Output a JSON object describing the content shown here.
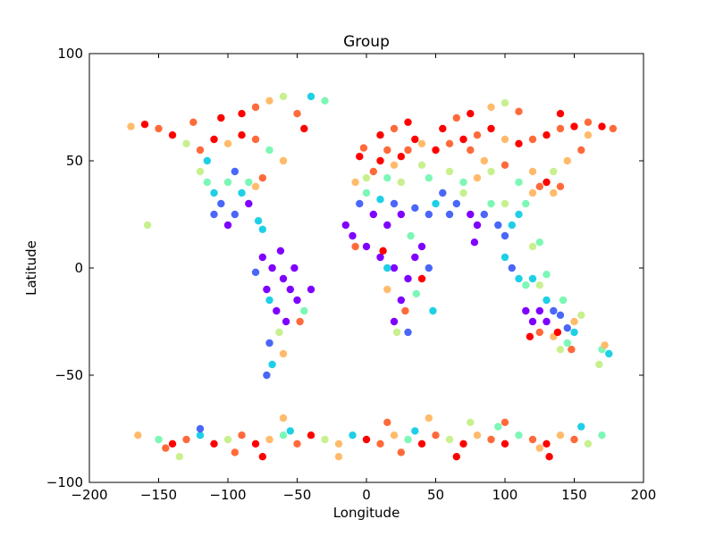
{
  "chart_data": {
    "type": "scatter",
    "title": "Group",
    "xlabel": "Longitude",
    "ylabel": "Latitude",
    "xlim": [
      -200,
      200
    ],
    "ylim": [
      -100,
      100
    ],
    "xticks": [
      -200,
      -150,
      -100,
      -50,
      0,
      50,
      100,
      150,
      200
    ],
    "yticks": [
      -100,
      -50,
      0,
      50,
      100
    ],
    "xtick_labels": [
      "−200",
      "−150",
      "−100",
      "−50",
      "0",
      "50",
      "100",
      "150",
      "200"
    ],
    "ytick_labels": [
      "−100",
      "−50",
      "0",
      "50",
      "100"
    ],
    "grid": false,
    "legend": "none",
    "colormap": [
      "#7f00ff",
      "#4a67f9",
      "#1ed0e6",
      "#7cf7b6",
      "#c8f08f",
      "#ffbb6b",
      "#ff6a3a",
      "#ff0000"
    ],
    "points": [
      [
        -75,
        5,
        0
      ],
      [
        -68,
        0,
        0
      ],
      [
        -60,
        -5,
        0
      ],
      [
        -55,
        -10,
        0
      ],
      [
        -50,
        -15,
        0
      ],
      [
        -65,
        -20,
        0
      ],
      [
        -58,
        -25,
        0
      ],
      [
        -70,
        -35,
        1
      ],
      [
        -68,
        -45,
        2
      ],
      [
        -72,
        -50,
        1
      ],
      [
        -45,
        -20,
        3
      ],
      [
        -40,
        -10,
        0
      ],
      [
        -62,
        8,
        0
      ],
      [
        -80,
        -2,
        1
      ],
      [
        -72,
        -10,
        0
      ],
      [
        -52,
        0,
        0
      ],
      [
        -63,
        -30,
        4
      ],
      [
        -60,
        -40,
        5
      ],
      [
        -70,
        -15,
        2
      ],
      [
        -48,
        -25,
        6
      ],
      [
        -100,
        20,
        0
      ],
      [
        -95,
        25,
        1
      ],
      [
        -105,
        30,
        1
      ],
      [
        -110,
        35,
        2
      ],
      [
        -115,
        40,
        3
      ],
      [
        -120,
        45,
        4
      ],
      [
        -90,
        35,
        2
      ],
      [
        -85,
        40,
        3
      ],
      [
        -80,
        38,
        5
      ],
      [
        -75,
        42,
        6
      ],
      [
        -120,
        55,
        6
      ],
      [
        -110,
        60,
        7
      ],
      [
        -100,
        58,
        5
      ],
      [
        -90,
        62,
        7
      ],
      [
        -80,
        60,
        6
      ],
      [
        -140,
        62,
        7
      ],
      [
        -150,
        65,
        6
      ],
      [
        -160,
        67,
        7
      ],
      [
        -170,
        66,
        5
      ],
      [
        -130,
        58,
        4
      ],
      [
        -70,
        55,
        3
      ],
      [
        -60,
        50,
        5
      ],
      [
        -95,
        45,
        1
      ],
      [
        -115,
        50,
        2
      ],
      [
        -85,
        30,
        0
      ],
      [
        -110,
        25,
        1
      ],
      [
        -100,
        40,
        3
      ],
      [
        -125,
        68,
        6
      ],
      [
        -105,
        70,
        7
      ],
      [
        -90,
        72,
        7
      ],
      [
        -80,
        75,
        6
      ],
      [
        -70,
        78,
        5
      ],
      [
        -60,
        80,
        4
      ],
      [
        -50,
        72,
        6
      ],
      [
        -45,
        65,
        7
      ],
      [
        -40,
        80,
        2
      ],
      [
        -30,
        78,
        3
      ],
      [
        -158,
        20,
        4
      ],
      [
        -78,
        22,
        2
      ],
      [
        -75,
        18,
        2
      ],
      [
        -10,
        15,
        0
      ],
      [
        0,
        10,
        0
      ],
      [
        10,
        5,
        0
      ],
      [
        20,
        0,
        0
      ],
      [
        30,
        -5,
        0
      ],
      [
        25,
        -15,
        0
      ],
      [
        20,
        -25,
        0
      ],
      [
        30,
        -30,
        1
      ],
      [
        35,
        5,
        0
      ],
      [
        40,
        10,
        0
      ],
      [
        15,
        20,
        0
      ],
      [
        5,
        25,
        0
      ],
      [
        25,
        25,
        0
      ],
      [
        35,
        28,
        1
      ],
      [
        -5,
        30,
        1
      ],
      [
        10,
        32,
        2
      ],
      [
        0,
        35,
        3
      ],
      [
        20,
        30,
        1
      ],
      [
        -15,
        20,
        0
      ],
      [
        45,
        0,
        1
      ],
      [
        48,
        -20,
        2
      ],
      [
        15,
        -10,
        5
      ],
      [
        28,
        -20,
        6
      ],
      [
        12,
        8,
        7
      ],
      [
        32,
        15,
        3
      ],
      [
        22,
        -30,
        4
      ],
      [
        40,
        -5,
        7
      ],
      [
        -8,
        10,
        6
      ],
      [
        15,
        0,
        2
      ],
      [
        36,
        -12,
        3
      ],
      [
        5,
        45,
        6
      ],
      [
        10,
        50,
        7
      ],
      [
        15,
        55,
        6
      ],
      [
        20,
        48,
        5
      ],
      [
        25,
        52,
        7
      ],
      [
        30,
        55,
        6
      ],
      [
        35,
        60,
        7
      ],
      [
        40,
        58,
        5
      ],
      [
        -5,
        52,
        7
      ],
      [
        -2,
        56,
        6
      ],
      [
        10,
        62,
        7
      ],
      [
        20,
        65,
        6
      ],
      [
        30,
        68,
        7
      ],
      [
        40,
        48,
        4
      ],
      [
        45,
        42,
        3
      ],
      [
        0,
        42,
        4
      ],
      [
        -8,
        40,
        5
      ],
      [
        25,
        40,
        4
      ],
      [
        15,
        42,
        3
      ],
      [
        50,
        55,
        7
      ],
      [
        60,
        58,
        6
      ],
      [
        70,
        60,
        7
      ],
      [
        80,
        62,
        6
      ],
      [
        90,
        65,
        7
      ],
      [
        100,
        60,
        5
      ],
      [
        110,
        58,
        7
      ],
      [
        120,
        60,
        6
      ],
      [
        130,
        62,
        7
      ],
      [
        140,
        65,
        6
      ],
      [
        150,
        66,
        7
      ],
      [
        160,
        68,
        6
      ],
      [
        170,
        66,
        7
      ],
      [
        60,
        45,
        4
      ],
      [
        70,
        40,
        3
      ],
      [
        80,
        42,
        5
      ],
      [
        90,
        45,
        4
      ],
      [
        100,
        48,
        6
      ],
      [
        110,
        40,
        3
      ],
      [
        120,
        45,
        5
      ],
      [
        55,
        35,
        1
      ],
      [
        65,
        30,
        1
      ],
      [
        75,
        25,
        0
      ],
      [
        80,
        20,
        0
      ],
      [
        78,
        12,
        0
      ],
      [
        85,
        25,
        1
      ],
      [
        95,
        20,
        1
      ],
      [
        100,
        15,
        1
      ],
      [
        105,
        20,
        2
      ],
      [
        110,
        25,
        2
      ],
      [
        115,
        30,
        3
      ],
      [
        120,
        35,
        5
      ],
      [
        125,
        38,
        6
      ],
      [
        130,
        40,
        7
      ],
      [
        140,
        38,
        6
      ],
      [
        135,
        35,
        5
      ],
      [
        100,
        5,
        2
      ],
      [
        105,
        0,
        1
      ],
      [
        110,
        -5,
        2
      ],
      [
        115,
        -8,
        3
      ],
      [
        120,
        -5,
        2
      ],
      [
        125,
        -8,
        4
      ],
      [
        130,
        -3,
        3
      ],
      [
        120,
        10,
        4
      ],
      [
        125,
        12,
        3
      ],
      [
        60,
        25,
        1
      ],
      [
        50,
        30,
        2
      ],
      [
        45,
        25,
        1
      ],
      [
        70,
        35,
        4
      ],
      [
        90,
        30,
        3
      ],
      [
        85,
        50,
        5
      ],
      [
        75,
        55,
        6
      ],
      [
        55,
        65,
        7
      ],
      [
        65,
        70,
        6
      ],
      [
        75,
        72,
        7
      ],
      [
        90,
        75,
        5
      ],
      [
        100,
        77,
        4
      ],
      [
        110,
        73,
        6
      ],
      [
        140,
        72,
        7
      ],
      [
        160,
        62,
        5
      ],
      [
        178,
        65,
        6
      ],
      [
        145,
        50,
        5
      ],
      [
        155,
        55,
        6
      ],
      [
        135,
        45,
        4
      ],
      [
        100,
        30,
        4
      ],
      [
        115,
        -20,
        0
      ],
      [
        120,
        -25,
        0
      ],
      [
        125,
        -20,
        0
      ],
      [
        130,
        -25,
        0
      ],
      [
        135,
        -20,
        1
      ],
      [
        140,
        -22,
        1
      ],
      [
        145,
        -28,
        1
      ],
      [
        150,
        -30,
        2
      ],
      [
        145,
        -35,
        3
      ],
      [
        140,
        -38,
        4
      ],
      [
        135,
        -32,
        5
      ],
      [
        125,
        -30,
        6
      ],
      [
        118,
        -32,
        7
      ],
      [
        150,
        -25,
        5
      ],
      [
        142,
        -15,
        3
      ],
      [
        130,
        -15,
        2
      ],
      [
        138,
        -30,
        7
      ],
      [
        148,
        -38,
        6
      ],
      [
        170,
        -38,
        3
      ],
      [
        175,
        -40,
        2
      ],
      [
        168,
        -45,
        4
      ],
      [
        172,
        -36,
        5
      ],
      [
        155,
        -22,
        4
      ],
      [
        -165,
        -78,
        5
      ],
      [
        -150,
        -80,
        3
      ],
      [
        -140,
        -82,
        7
      ],
      [
        -130,
        -80,
        6
      ],
      [
        -120,
        -78,
        2
      ],
      [
        -110,
        -82,
        7
      ],
      [
        -100,
        -80,
        4
      ],
      [
        -90,
        -78,
        6
      ],
      [
        -80,
        -82,
        7
      ],
      [
        -70,
        -80,
        5
      ],
      [
        -60,
        -78,
        3
      ],
      [
        -50,
        -82,
        6
      ],
      [
        -40,
        -78,
        7
      ],
      [
        -30,
        -80,
        4
      ],
      [
        -20,
        -82,
        5
      ],
      [
        -10,
        -78,
        2
      ],
      [
        0,
        -80,
        7
      ],
      [
        10,
        -82,
        6
      ],
      [
        20,
        -78,
        5
      ],
      [
        30,
        -80,
        3
      ],
      [
        40,
        -82,
        7
      ],
      [
        50,
        -78,
        6
      ],
      [
        60,
        -80,
        4
      ],
      [
        70,
        -82,
        7
      ],
      [
        80,
        -78,
        5
      ],
      [
        90,
        -80,
        6
      ],
      [
        100,
        -82,
        7
      ],
      [
        110,
        -78,
        3
      ],
      [
        120,
        -80,
        6
      ],
      [
        130,
        -82,
        7
      ],
      [
        140,
        -78,
        5
      ],
      [
        150,
        -80,
        6
      ],
      [
        160,
        -82,
        4
      ],
      [
        170,
        -78,
        3
      ],
      [
        -135,
        -88,
        4
      ],
      [
        -95,
        -86,
        6
      ],
      [
        -60,
        -70,
        5
      ],
      [
        -20,
        -88,
        5
      ],
      [
        15,
        -72,
        6
      ],
      [
        45,
        -70,
        5
      ],
      [
        75,
        -72,
        4
      ],
      [
        100,
        -72,
        6
      ],
      [
        132,
        -88,
        7
      ],
      [
        -120,
        -75,
        1
      ],
      [
        -55,
        -76,
        2
      ],
      [
        35,
        -76,
        2
      ],
      [
        95,
        -74,
        3
      ],
      [
        155,
        -74,
        2
      ],
      [
        -145,
        -84,
        6
      ],
      [
        -75,
        -88,
        7
      ],
      [
        25,
        -86,
        6
      ],
      [
        65,
        -88,
        7
      ],
      [
        125,
        -84,
        5
      ]
    ]
  }
}
